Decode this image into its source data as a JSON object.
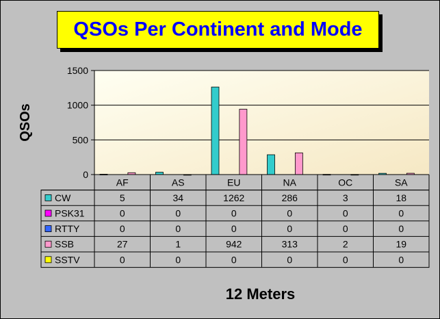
{
  "chart_data": {
    "type": "bar",
    "title": "QSOs Per Continent and Mode",
    "xlabel": "12 Meters",
    "ylabel": "QSOs",
    "ylim": [
      0,
      1500
    ],
    "yticks": [
      0,
      500,
      1000,
      1500
    ],
    "grid": true,
    "legend": "table-left",
    "categories": [
      "AF",
      "AS",
      "EU",
      "NA",
      "OC",
      "SA"
    ],
    "series": [
      {
        "name": "CW",
        "color": "#33cccc",
        "values": [
          5,
          34,
          1262,
          286,
          3,
          18
        ]
      },
      {
        "name": "PSK31",
        "color": "#ff00ff",
        "values": [
          0,
          0,
          0,
          0,
          0,
          0
        ]
      },
      {
        "name": "RTTY",
        "color": "#3366ff",
        "values": [
          0,
          0,
          0,
          0,
          0,
          0
        ]
      },
      {
        "name": "SSB",
        "color": "#ff99cc",
        "values": [
          27,
          1,
          942,
          313,
          2,
          19
        ]
      },
      {
        "name": "SSTV",
        "color": "#ffff00",
        "values": [
          0,
          0,
          0,
          0,
          0,
          0
        ]
      }
    ]
  },
  "colors": {
    "background": "#c0c0c0",
    "plot_area": "#fff8dc",
    "title_box": "#ffff00",
    "title_text": "#0000ff"
  }
}
